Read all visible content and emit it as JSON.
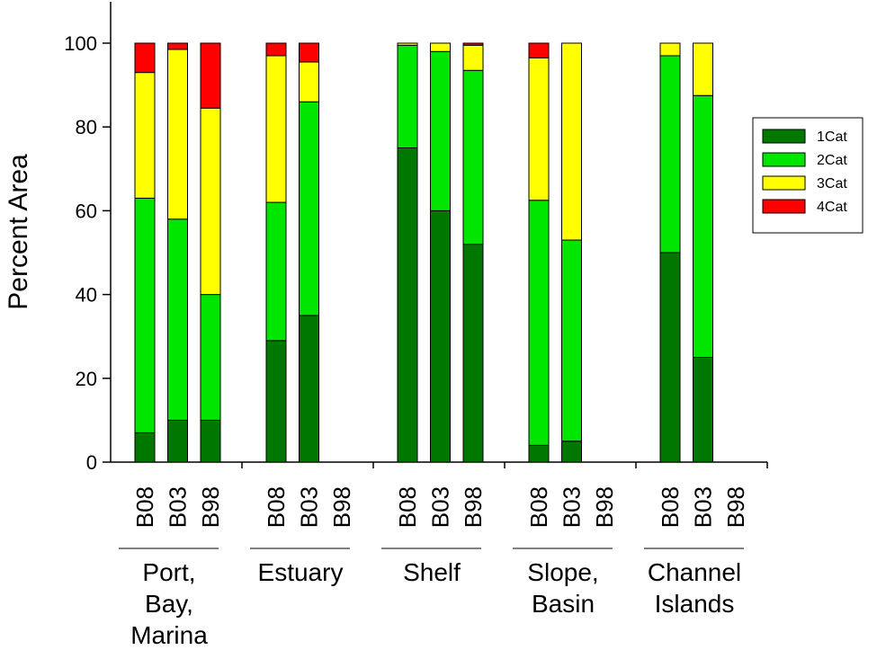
{
  "chart_data": {
    "type": "bar",
    "stacked": true,
    "ylabel": "Percent Area",
    "ylim": [
      0,
      100
    ],
    "yticks": [
      0,
      20,
      40,
      60,
      80,
      100
    ],
    "legend_position": "right",
    "groups": [
      {
        "name": "Port, Bay, Marina",
        "lines": [
          "Port,",
          "Bay,",
          "Marina"
        ],
        "categories": [
          "B08",
          "B03",
          "B98"
        ]
      },
      {
        "name": "Estuary",
        "lines": [
          "Estuary"
        ],
        "categories": [
          "B08",
          "B03",
          "B98"
        ]
      },
      {
        "name": "Shelf",
        "lines": [
          "Shelf"
        ],
        "categories": [
          "B08",
          "B03",
          "B98"
        ]
      },
      {
        "name": "Slope, Basin",
        "lines": [
          "Slope,",
          "Basin"
        ],
        "categories": [
          "B08",
          "B03",
          "B98"
        ]
      },
      {
        "name": "Channel Islands",
        "lines": [
          "Channel",
          "Islands"
        ],
        "categories": [
          "B08",
          "B03",
          "B98"
        ]
      }
    ],
    "series": [
      {
        "name": "1Cat",
        "color": "#007800",
        "values": [
          [
            7,
            10,
            10
          ],
          [
            29,
            35,
            null
          ],
          [
            75,
            60,
            52
          ],
          [
            4,
            5,
            null
          ],
          [
            50,
            25,
            null
          ]
        ]
      },
      {
        "name": "2Cat",
        "color": "#00e600",
        "values": [
          [
            56,
            48,
            30
          ],
          [
            33,
            51,
            null
          ],
          [
            24.5,
            38,
            41.5
          ],
          [
            58.5,
            48,
            null
          ],
          [
            47,
            62.5,
            null
          ]
        ]
      },
      {
        "name": "3Cat",
        "color": "#ffff00",
        "values": [
          [
            30,
            40.5,
            44.5
          ],
          [
            35,
            9.5,
            null
          ],
          [
            0.5,
            2,
            6
          ],
          [
            34,
            47,
            null
          ],
          [
            3,
            12.5,
            null
          ]
        ]
      },
      {
        "name": "4Cat",
        "color": "#ff0000",
        "values": [
          [
            7,
            1.5,
            15.5
          ],
          [
            3,
            4.5,
            null
          ],
          [
            0,
            0,
            0.5
          ],
          [
            3.5,
            0,
            null
          ],
          [
            0,
            0,
            null
          ]
        ]
      }
    ]
  }
}
